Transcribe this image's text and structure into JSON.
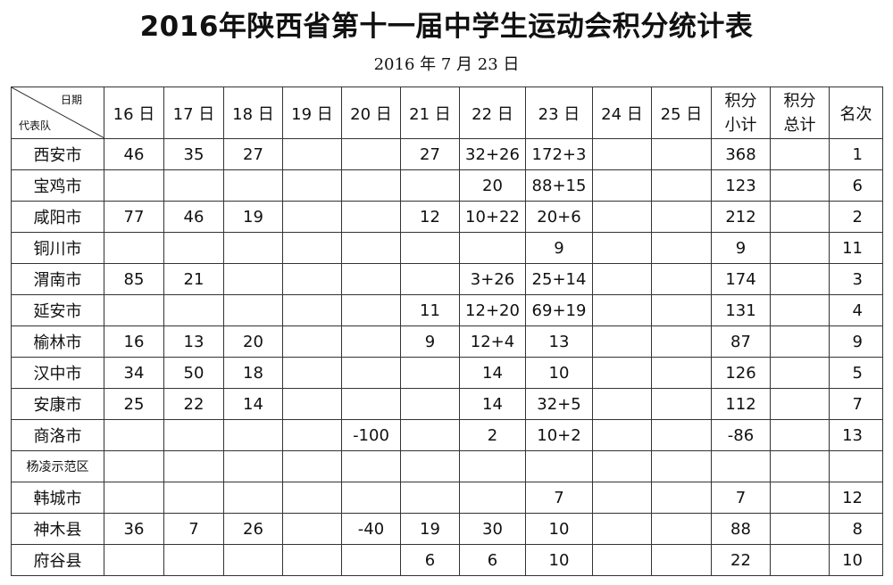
{
  "title": "2016年陕西省第十一届中学生运动会积分统计表",
  "subtitle": "2016 年 7 月 23 日",
  "header": {
    "corner_top": "日期",
    "corner_bottom": "代表队",
    "days": [
      "16 日",
      "17 日",
      "18 日",
      "19 日",
      "20 日",
      "21 日",
      "22 日",
      "23 日",
      "24 日",
      "25 日"
    ],
    "subtotal_1": "积分",
    "subtotal_2": "小计",
    "total_1": "积分",
    "total_2": "总计",
    "rank": "名次"
  },
  "rows": [
    {
      "team": "西安市",
      "days": [
        "46",
        "35",
        "27",
        "",
        "",
        "27",
        "32+26",
        "172+3",
        "",
        ""
      ],
      "subtotal": "368",
      "total": "",
      "rank": "1"
    },
    {
      "team": "宝鸡市",
      "days": [
        "",
        "",
        "",
        "",
        "",
        "",
        "20",
        "88+15",
        "",
        ""
      ],
      "subtotal": "123",
      "total": "",
      "rank": "6"
    },
    {
      "team": "咸阳市",
      "days": [
        "77",
        "46",
        "19",
        "",
        "",
        "12",
        "10+22",
        "20+6",
        "",
        ""
      ],
      "subtotal": "212",
      "total": "",
      "rank": "2"
    },
    {
      "team": "铜川市",
      "days": [
        "",
        "",
        "",
        "",
        "",
        "",
        "",
        "9",
        "",
        ""
      ],
      "subtotal": "9",
      "total": "",
      "rank": "11"
    },
    {
      "team": "渭南市",
      "days": [
        "85",
        "21",
        "",
        "",
        "",
        "",
        "3+26",
        "25+14",
        "",
        ""
      ],
      "subtotal": "174",
      "total": "",
      "rank": "3"
    },
    {
      "team": "延安市",
      "days": [
        "",
        "",
        "",
        "",
        "",
        "11",
        "12+20",
        "69+19",
        "",
        ""
      ],
      "subtotal": "131",
      "total": "",
      "rank": "4"
    },
    {
      "team": "榆林市",
      "days": [
        "16",
        "13",
        "20",
        "",
        "",
        "9",
        "12+4",
        "13",
        "",
        ""
      ],
      "subtotal": "87",
      "total": "",
      "rank": "9"
    },
    {
      "team": "汉中市",
      "days": [
        "34",
        "50",
        "18",
        "",
        "",
        "",
        "14",
        "10",
        "",
        ""
      ],
      "subtotal": "126",
      "total": "",
      "rank": "5"
    },
    {
      "team": "安康市",
      "days": [
        "25",
        "22",
        "14",
        "",
        "",
        "",
        "14",
        "32+5",
        "",
        ""
      ],
      "subtotal": "112",
      "total": "",
      "rank": "7"
    },
    {
      "team": "商洛市",
      "days": [
        "",
        "",
        "",
        "",
        "-100",
        "",
        "2",
        "10+2",
        "",
        ""
      ],
      "subtotal": "-86",
      "total": "",
      "rank": "13"
    },
    {
      "team": "杨凌示范区",
      "days": [
        "",
        "",
        "",
        "",
        "",
        "",
        "",
        "",
        "",
        ""
      ],
      "subtotal": "",
      "total": "",
      "rank": ""
    },
    {
      "team": "韩城市",
      "days": [
        "",
        "",
        "",
        "",
        "",
        "",
        "",
        "7",
        "",
        ""
      ],
      "subtotal": "7",
      "total": "",
      "rank": "12"
    },
    {
      "team": "神木县",
      "days": [
        "36",
        "7",
        "26",
        "",
        "-40",
        "19",
        "30",
        "10",
        "",
        ""
      ],
      "subtotal": "88",
      "total": "",
      "rank": "8"
    },
    {
      "team": "府谷县",
      "days": [
        "",
        "",
        "",
        "",
        "",
        "6",
        "6",
        "10",
        "",
        ""
      ],
      "subtotal": "22",
      "total": "",
      "rank": "10"
    }
  ]
}
